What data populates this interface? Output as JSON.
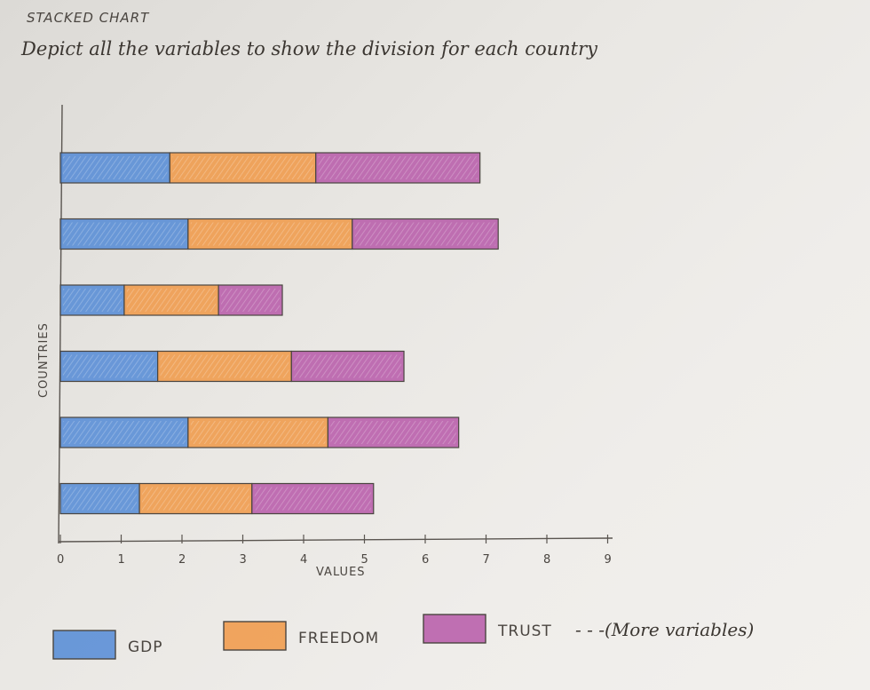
{
  "heading": "STACKED CHART",
  "subtitle": "Depict all the variables to show the division for each country",
  "more_note": "- - -(More variables)",
  "colors": {
    "gdp": "#4d86d6",
    "freedom": "#f0953f",
    "trust": "#b553a6"
  },
  "chart_data": {
    "type": "bar",
    "orientation": "horizontal",
    "stacked": true,
    "title": "",
    "xlabel": "VALUES",
    "ylabel": "COUNTRIES",
    "xlim": [
      0,
      9
    ],
    "x_ticks": [
      "0",
      "1",
      "2",
      "3",
      "4",
      "5",
      "6",
      "7",
      "8",
      "9"
    ],
    "categories": [
      "",
      "",
      "",
      "",
      "",
      ""
    ],
    "series": [
      {
        "name": "GDP",
        "values": [
          1.8,
          2.1,
          1.05,
          1.6,
          2.1,
          1.3
        ]
      },
      {
        "name": "FREEDOM",
        "values": [
          2.4,
          2.7,
          1.55,
          2.2,
          2.3,
          1.85
        ]
      },
      {
        "name": "TRUST",
        "values": [
          2.7,
          2.4,
          1.05,
          1.85,
          2.15,
          2.0
        ]
      }
    ],
    "legend_position": "bottom",
    "grid": false
  }
}
